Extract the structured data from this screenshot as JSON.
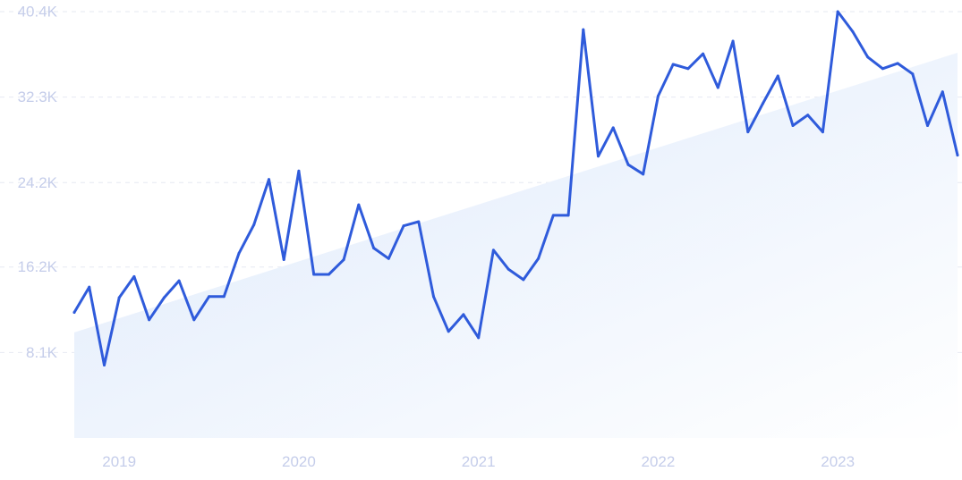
{
  "chart_data": {
    "type": "line",
    "title": "",
    "xlabel": "",
    "ylabel": "",
    "ylim": [
      0,
      40400
    ],
    "xlim": [
      "2018-10",
      "2023-09"
    ],
    "y_ticks": [
      8100,
      16200,
      24200,
      32300,
      40400
    ],
    "y_tick_labels": [
      "8.1K",
      "16.2K",
      "24.2K",
      "32.3K",
      "40.4K"
    ],
    "x_ticks": [
      "2019-01",
      "2020-01",
      "2021-01",
      "2022-01",
      "2023-01"
    ],
    "x_tick_labels": [
      "2019",
      "2020",
      "2021",
      "2022",
      "2023"
    ],
    "grid": true,
    "legend": "none",
    "colors": {
      "line": "#2f5bdb",
      "trend_fill_start": "#dde9fb",
      "trend_fill_end": "#ffffff",
      "grid": "#e6e9f2",
      "tick_text": "#c5cdea"
    },
    "series": [
      {
        "x": [
          "2018-10",
          "2018-11",
          "2018-12",
          "2019-01",
          "2019-02",
          "2019-03",
          "2019-04",
          "2019-05",
          "2019-06",
          "2019-07",
          "2019-08",
          "2019-09",
          "2019-10",
          "2019-11",
          "2019-12",
          "2020-01",
          "2020-02",
          "2020-03",
          "2020-04",
          "2020-05",
          "2020-06",
          "2020-07",
          "2020-08",
          "2020-09",
          "2020-10",
          "2020-11",
          "2020-12",
          "2021-01",
          "2021-02",
          "2021-03",
          "2021-04",
          "2021-05",
          "2021-06",
          "2021-07",
          "2021-08",
          "2021-09",
          "2021-10",
          "2021-11",
          "2021-12",
          "2022-01",
          "2022-02",
          "2022-03",
          "2022-04",
          "2022-05",
          "2022-06",
          "2022-07",
          "2022-08",
          "2022-09",
          "2022-10",
          "2022-11",
          "2022-12",
          "2023-01",
          "2023-02",
          "2023-03",
          "2023-04",
          "2023-05",
          "2023-06",
          "2023-07",
          "2023-08",
          "2023-09"
        ],
        "values": [
          11900,
          14300,
          6900,
          13300,
          15300,
          11200,
          13300,
          14900,
          11200,
          13400,
          13400,
          17500,
          20200,
          24500,
          16900,
          25300,
          15500,
          15500,
          16900,
          22100,
          18000,
          17000,
          20100,
          20500,
          13400,
          10100,
          11700,
          9500,
          17800,
          16000,
          15000,
          17000,
          21100,
          21100,
          38700,
          26700,
          29400,
          25900,
          25000,
          32400,
          35400,
          35000,
          36400,
          33200,
          37600,
          29000,
          31700,
          34300,
          29600,
          30600,
          29000,
          40400,
          38500,
          36100,
          35000,
          35500,
          34500,
          29600,
          32800,
          26800
        ]
      }
    ],
    "trend": {
      "start": 10000,
      "end": 36500
    }
  }
}
